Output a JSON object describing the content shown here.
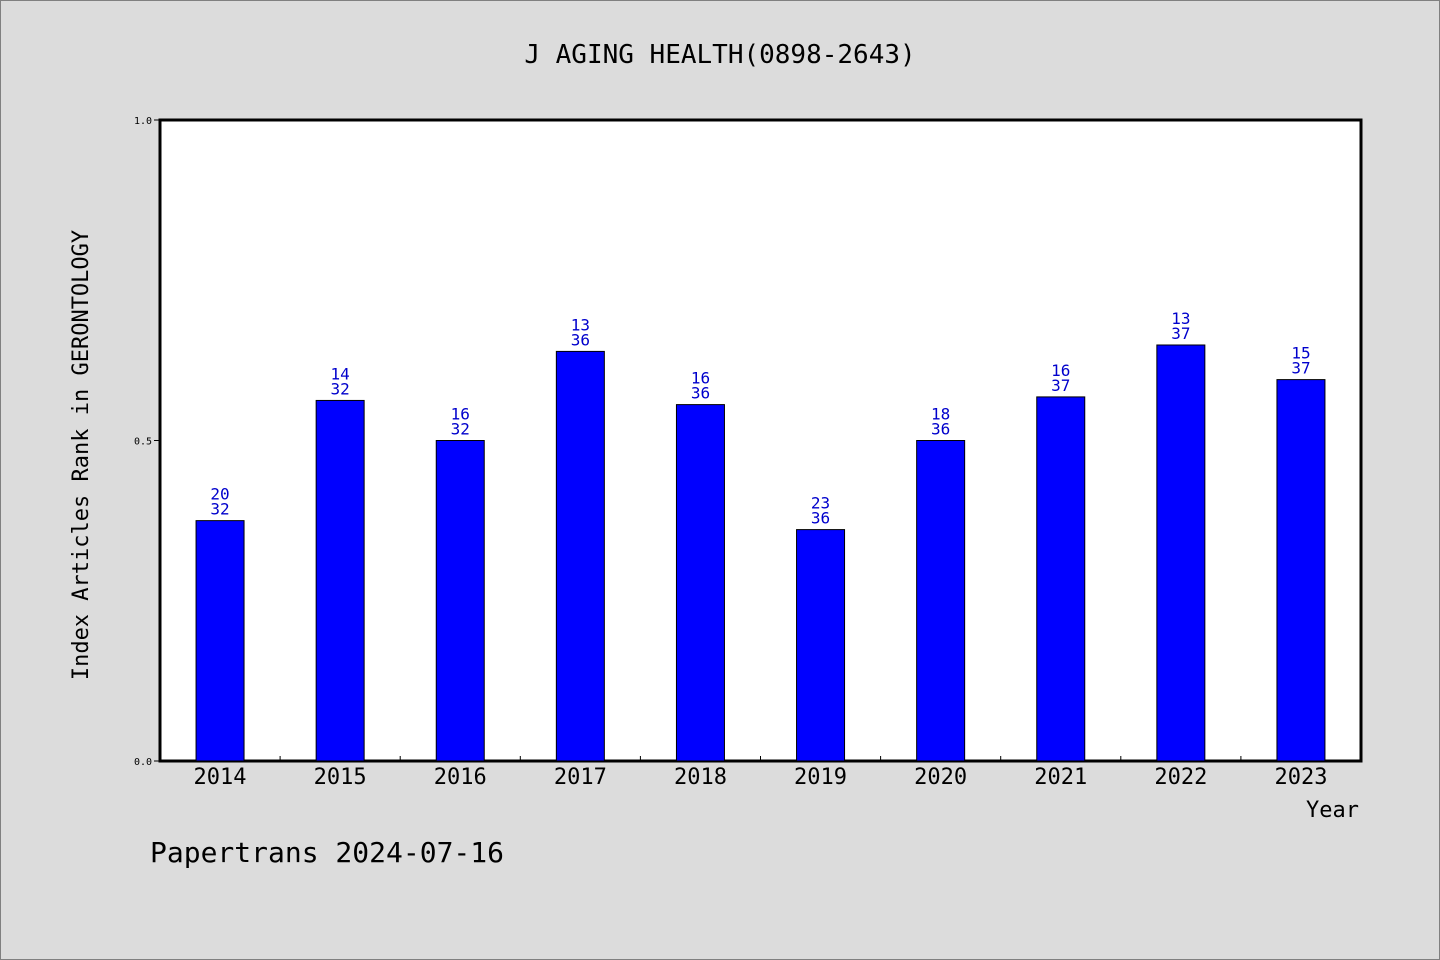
{
  "chart_data": {
    "type": "bar",
    "title": "J AGING HEALTH(0898-2643)",
    "xlabel": "Year",
    "ylabel": "Index Articles Rank in GERONTOLOGY",
    "ylim": [
      0,
      1.0
    ],
    "yticks": [
      "0.0",
      "0.5",
      "1.0"
    ],
    "categories": [
      "2014",
      "2015",
      "2016",
      "2017",
      "2018",
      "2019",
      "2020",
      "2021",
      "2022",
      "2023"
    ],
    "ranks": [
      "20",
      "14",
      "16",
      "13",
      "16",
      "23",
      "18",
      "16",
      "13",
      "15"
    ],
    "totals": [
      "32",
      "32",
      "32",
      "36",
      "36",
      "36",
      "36",
      "37",
      "37",
      "37"
    ],
    "values": [
      0.375,
      0.5625,
      0.5,
      0.639,
      0.556,
      0.361,
      0.5,
      0.568,
      0.649,
      0.595
    ],
    "grid": false,
    "legend": "none",
    "bar_color": "#0000ff",
    "label_color": "#0000cc"
  },
  "footer": {
    "text": "Papertrans 2024-07-16"
  }
}
